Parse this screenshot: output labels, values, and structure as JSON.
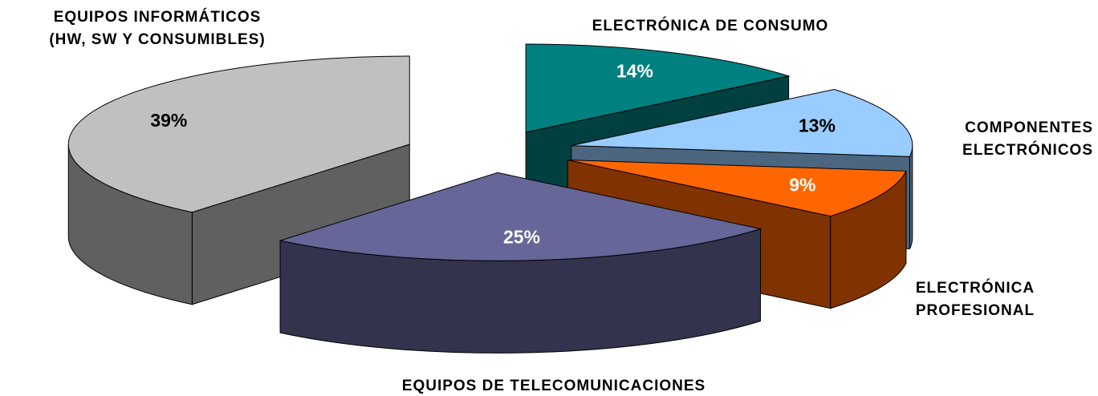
{
  "chart_data": {
    "type": "pie3d",
    "categories": [
      "ELECTRÓNICA DE CONSUMO",
      "COMPONENTES\nELECTRÓNICOS",
      "ELECTRÓNICA\nPROFESIONAL",
      "EQUIPOS DE TELECOMUNICACIONES",
      "EQUIPOS INFORMÁTICOS\n(HW, SW Y CONSUMIBLES)"
    ],
    "values": [
      14,
      13,
      9,
      25,
      39
    ],
    "value_labels": [
      "14%",
      "13%",
      "9%",
      "25%",
      "39%"
    ],
    "colors": [
      "#008080",
      "#99ccff",
      "#ff6600",
      "#666699",
      "#c0c0c0"
    ]
  }
}
